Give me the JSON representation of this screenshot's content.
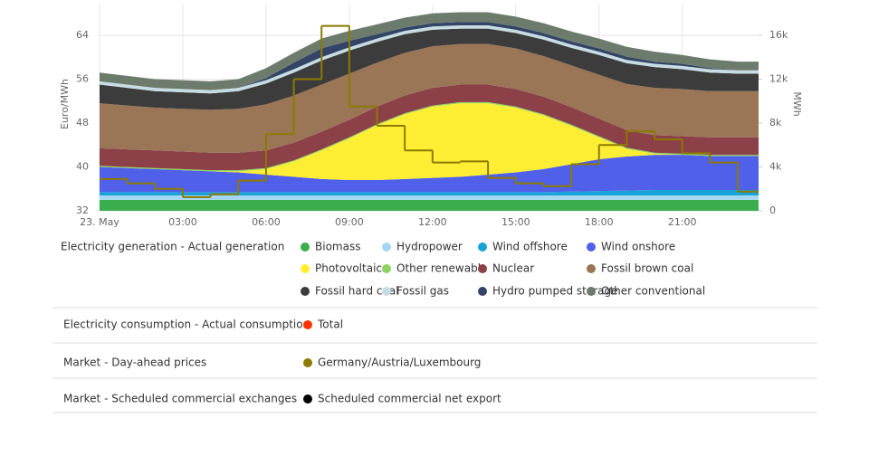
{
  "chart_data": {
    "type": "area",
    "x": [
      0,
      1,
      2,
      3,
      4,
      5,
      6,
      7,
      8,
      9,
      10,
      11,
      12,
      13,
      14,
      15,
      16,
      17,
      18,
      19,
      20,
      21,
      22,
      23,
      23.75
    ],
    "xlim": [
      0,
      23.75
    ],
    "xticks": [
      {
        "value": 0,
        "label": "23. May"
      },
      {
        "value": 3,
        "label": "03:00"
      },
      {
        "value": 6,
        "label": "06:00"
      },
      {
        "value": 9,
        "label": "09:00"
      },
      {
        "value": 12,
        "label": "12:00"
      },
      {
        "value": 15,
        "label": "15:00"
      },
      {
        "value": 18,
        "label": "18:00"
      },
      {
        "value": 21,
        "label": "21:00"
      }
    ],
    "ylabel": "Euro/MWh",
    "ylim": [
      32,
      69.6
    ],
    "yticks": [
      32,
      40,
      48,
      56,
      64
    ],
    "y2label": "MWh",
    "y2lim": [
      0,
      18800
    ],
    "y2ticks": [
      0,
      {
        "value": 4000,
        "label": "4k"
      },
      {
        "value": 8000,
        "label": "8k"
      },
      {
        "value": 12000,
        "label": "12k"
      },
      {
        "value": 16000,
        "label": "16k"
      }
    ],
    "grid": true,
    "stacked": true,
    "legend_title": "Electricity generation - Actual generation",
    "price_legend_title": "Market - Day-ahead prices",
    "series": [
      {
        "name": "Biomass",
        "color": "#3aae4c",
        "axis": "y2",
        "values": [
          1000,
          1000,
          1000,
          1000,
          1000,
          1000,
          1000,
          1000,
          1000,
          1000,
          1000,
          1000,
          1000,
          1000,
          1000,
          1000,
          1000,
          1000,
          1000,
          1000,
          1000,
          1000,
          1000,
          1000,
          1000
        ]
      },
      {
        "name": "Hydropower",
        "color": "#a4d8f2",
        "axis": "y2",
        "values": [
          400,
          400,
          400,
          400,
          400,
          400,
          400,
          400,
          400,
          400,
          400,
          400,
          400,
          400,
          400,
          400,
          400,
          400,
          400,
          400,
          400,
          400,
          400,
          400,
          400
        ]
      },
      {
        "name": "Wind offshore",
        "color": "#1aa3d9",
        "axis": "y2",
        "values": [
          300,
          300,
          300,
          300,
          300,
          300,
          300,
          300,
          300,
          300,
          300,
          300,
          300,
          300,
          300,
          300,
          300,
          350,
          400,
          450,
          500,
          500,
          500,
          500,
          500
        ]
      },
      {
        "name": "Wind onshore",
        "color": "#5060e8",
        "axis": "y2",
        "values": [
          2300,
          2200,
          2100,
          2000,
          1900,
          1800,
          1600,
          1400,
          1200,
          1100,
          1100,
          1200,
          1300,
          1400,
          1600,
          1800,
          2100,
          2500,
          2900,
          3100,
          3200,
          3200,
          3100,
          3100,
          3100
        ]
      },
      {
        "name": "Photovoltaics",
        "color": "#ffee33",
        "axis": "y2",
        "values": [
          0,
          0,
          0,
          0,
          0,
          100,
          500,
          1400,
          2600,
          3800,
          5000,
          5900,
          6500,
          6700,
          6500,
          5900,
          4900,
          3500,
          2000,
          700,
          100,
          0,
          0,
          0,
          0
        ]
      },
      {
        "name": "Other renewable",
        "color": "#8fd461",
        "axis": "y2",
        "values": [
          100,
          100,
          100,
          100,
          100,
          100,
          100,
          100,
          100,
          100,
          100,
          100,
          100,
          100,
          100,
          100,
          100,
          100,
          100,
          100,
          100,
          100,
          100,
          100,
          100
        ]
      },
      {
        "name": "Nuclear",
        "color": "#8c4048",
        "axis": "y2",
        "values": [
          1600,
          1600,
          1600,
          1600,
          1600,
          1600,
          1600,
          1600,
          1600,
          1600,
          1600,
          1600,
          1600,
          1600,
          1600,
          1600,
          1600,
          1600,
          1600,
          1600,
          1600,
          1600,
          1600,
          1600,
          1600
        ]
      },
      {
        "name": "Fossil brown coal",
        "color": "#9a7556",
        "axis": "y2",
        "values": [
          4100,
          4000,
          3900,
          3900,
          3900,
          4000,
          4200,
          4300,
          4300,
          4200,
          4000,
          3900,
          3800,
          3700,
          3700,
          3700,
          3700,
          3800,
          4000,
          4200,
          4300,
          4300,
          4200,
          4200,
          4200
        ]
      },
      {
        "name": "Fossil hard coal",
        "color": "#3c3c3c",
        "axis": "y2",
        "values": [
          1700,
          1600,
          1500,
          1500,
          1500,
          1600,
          1900,
          2100,
          2200,
          2100,
          1900,
          1700,
          1500,
          1400,
          1400,
          1400,
          1500,
          1600,
          1800,
          1900,
          1900,
          1800,
          1700,
          1600,
          1600
        ]
      },
      {
        "name": "Fossil gas",
        "color": "#c8dde3",
        "axis": "y2",
        "values": [
          300,
          300,
          300,
          300,
          300,
          300,
          300,
          300,
          300,
          300,
          300,
          300,
          300,
          300,
          300,
          300,
          300,
          300,
          300,
          300,
          300,
          300,
          300,
          300,
          300
        ]
      },
      {
        "name": "Hydro pumped storage",
        "color": "#334466",
        "axis": "y2",
        "values": [
          0,
          0,
          0,
          0,
          0,
          0,
          200,
          600,
          800,
          600,
          400,
          300,
          300,
          300,
          300,
          300,
          300,
          300,
          300,
          300,
          200,
          200,
          100,
          0,
          0
        ]
      },
      {
        "name": "Other conventional",
        "color": "#6c7b6c",
        "axis": "y2",
        "values": [
          800,
          800,
          800,
          800,
          800,
          800,
          900,
          900,
          900,
          900,
          900,
          900,
          900,
          900,
          900,
          900,
          900,
          900,
          900,
          900,
          900,
          800,
          800,
          800,
          800
        ]
      },
      {
        "name": "Germany/Austria/Luxembourg",
        "color": "#8c7a00",
        "axis": "y",
        "values": [
          37.8,
          37,
          36,
          34.5,
          35,
          37.5,
          46,
          56,
          65.7,
          51,
          47.5,
          43,
          40.8,
          41,
          38,
          37,
          36.5,
          40.5,
          44,
          46.5,
          45,
          42.5,
          40.8,
          35.5,
          null
        ]
      }
    ]
  },
  "legend_groups": [
    {
      "title": "Electricity consumption - Actual consumption",
      "items": [
        {
          "name": "Total",
          "color": "#ff3300"
        }
      ]
    },
    {
      "title": "Market - Scheduled commercial exchanges",
      "items": [
        {
          "name": "Scheduled commercial net export",
          "color": "#000000"
        }
      ]
    }
  ]
}
